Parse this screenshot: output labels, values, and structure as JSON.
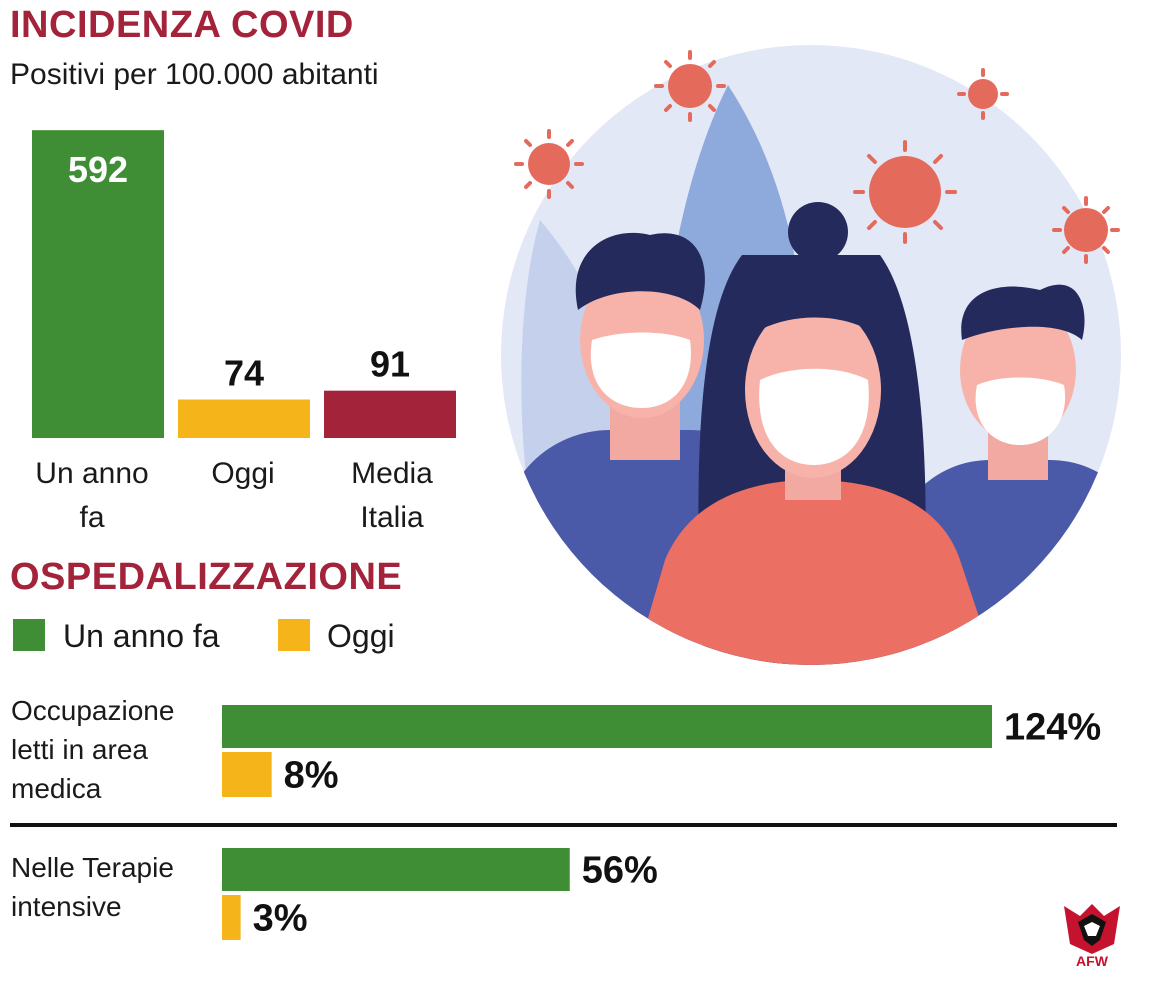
{
  "header": {
    "title": "INCIDENZA COVID",
    "subtitle": "Positivi per 100.000 abitanti"
  },
  "colors": {
    "title": "#a3233b",
    "green": "#3f8e36",
    "yellow": "#f6b41b",
    "red": "#a3233b",
    "data_label_on_bar": "#ffffff",
    "data_label": "#111111"
  },
  "chart_data": [
    {
      "type": "bar",
      "title": "INCIDENZA COVID",
      "subtitle": "Positivi per 100.000 abitanti",
      "categories": [
        "Un anno fa",
        "Oggi",
        "Media Italia"
      ],
      "category_labels": [
        "Un anno\nfa",
        "Oggi",
        "Media\nItalia"
      ],
      "values": [
        592,
        74,
        91
      ],
      "data_labels": [
        "592",
        "74",
        "91"
      ],
      "bar_colors": [
        "#3f8e36",
        "#f6b41b",
        "#a3233b"
      ],
      "ylim": [
        0,
        600
      ],
      "grid": false,
      "legend": false
    },
    {
      "type": "bar",
      "orientation": "horizontal",
      "title": "OSPEDALIZZAZIONE",
      "legend_entries": [
        {
          "label": "Un anno fa",
          "color": "#3f8e36"
        },
        {
          "label": "Oggi",
          "color": "#f6b41b"
        }
      ],
      "legend_placement": "top-left",
      "categories": [
        "Occupazione letti in area medica",
        "Nelle Terapie intensive"
      ],
      "category_labels": [
        "Occupazione\nletti in area\nmedica",
        "Nelle Terapie\nintensive"
      ],
      "series": [
        {
          "name": "Un anno fa",
          "values": [
            124,
            56
          ],
          "labels": [
            "124%",
            "56%"
          ],
          "color": "#3f8e36"
        },
        {
          "name": "Oggi",
          "values": [
            8,
            3
          ],
          "labels": [
            "8%",
            "3%"
          ],
          "color": "#f6b41b"
        }
      ],
      "unit": "%",
      "grid": false
    }
  ],
  "ospedalizzazione": {
    "title": "OSPEDALIZZAZIONE",
    "legend": [
      {
        "label": "Un anno fa"
      },
      {
        "label": "Oggi"
      }
    ]
  },
  "logo": {
    "text": "AFW"
  },
  "illustration": {
    "icons": [
      "virus-icon",
      "leaf-icon",
      "masked-person-icon"
    ]
  }
}
